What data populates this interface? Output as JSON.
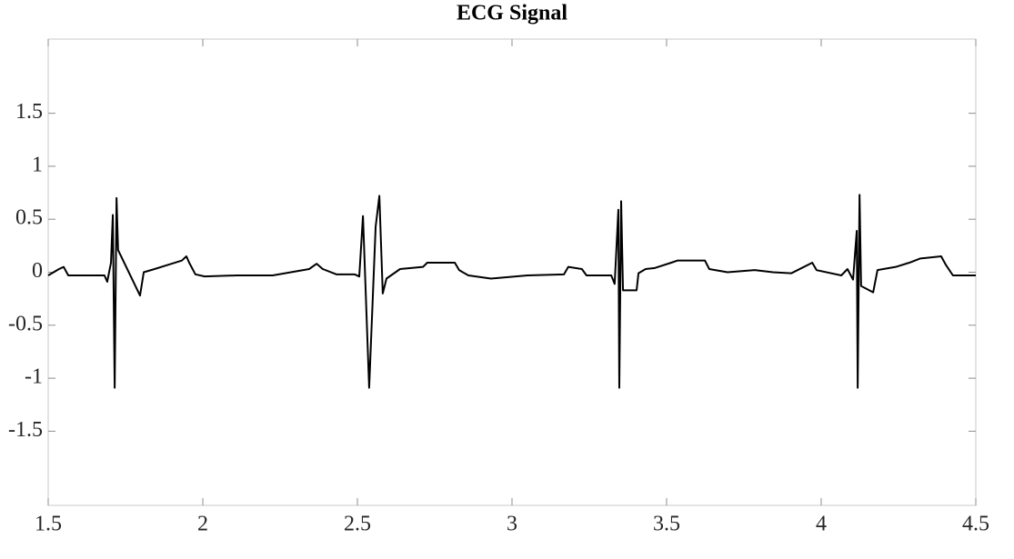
{
  "chart_data": {
    "type": "line",
    "title": "ECG Signal",
    "x": [
      1.5,
      1.535,
      1.55,
      1.565,
      1.682,
      1.691,
      1.703,
      1.709,
      1.715,
      1.721,
      1.726,
      1.797,
      1.809,
      1.844,
      1.888,
      1.932,
      1.947,
      1.956,
      1.976,
      2.006,
      2.109,
      2.226,
      2.344,
      2.368,
      2.388,
      2.432,
      2.491,
      2.506,
      2.518,
      2.538,
      2.559,
      2.571,
      2.582,
      2.594,
      2.638,
      2.712,
      2.726,
      2.815,
      2.829,
      2.859,
      2.932,
      3.05,
      3.168,
      3.182,
      3.226,
      3.241,
      3.321,
      3.332,
      3.344,
      3.347,
      3.353,
      3.359,
      3.403,
      3.409,
      3.432,
      3.462,
      3.515,
      3.535,
      3.624,
      3.638,
      3.697,
      3.785,
      3.844,
      3.903,
      3.971,
      3.985,
      4.065,
      4.085,
      4.103,
      4.115,
      4.118,
      4.124,
      4.129,
      4.168,
      4.182,
      4.241,
      4.285,
      4.321,
      4.388,
      4.403,
      4.426,
      4.5
    ],
    "series": [
      {
        "color": "#000000",
        "values": [
          -0.03,
          0.03,
          0.05,
          -0.03,
          -0.03,
          -0.09,
          0.09,
          0.54,
          -1.09,
          0.7,
          0.21,
          -0.22,
          0,
          0.03,
          0.07,
          0.11,
          0.15,
          0.09,
          -0.02,
          -0.04,
          -0.03,
          -0.03,
          0.03,
          0.08,
          0.03,
          -0.02,
          -0.02,
          -0.04,
          0.53,
          -1.09,
          0.43,
          0.72,
          -0.2,
          -0.06,
          0.03,
          0.05,
          0.09,
          0.09,
          0.02,
          -0.03,
          -0.06,
          -0.03,
          -0.02,
          0.05,
          0.03,
          -0.03,
          -0.03,
          -0.11,
          0.59,
          -1.09,
          0.67,
          -0.17,
          -0.17,
          -0.01,
          0.03,
          0.04,
          0.09,
          0.11,
          0.11,
          0.03,
          0,
          0.02,
          0,
          -0.01,
          0.09,
          0.02,
          -0.03,
          0.03,
          -0.07,
          0.39,
          -1.09,
          0.73,
          -0.13,
          -0.19,
          0.02,
          0.05,
          0.09,
          0.13,
          0.15,
          0.07,
          -0.03,
          -0.03
        ]
      }
    ],
    "xlim": [
      1.5,
      4.5
    ],
    "xticks": [
      1.5,
      2,
      2.5,
      3,
      3.5,
      4,
      4.5
    ],
    "ylim": [
      -2.2,
      2.2
    ],
    "yticks": [
      -1.5,
      -1,
      -0.5,
      0,
      0.5,
      1,
      1.5
    ],
    "grid": false
  }
}
